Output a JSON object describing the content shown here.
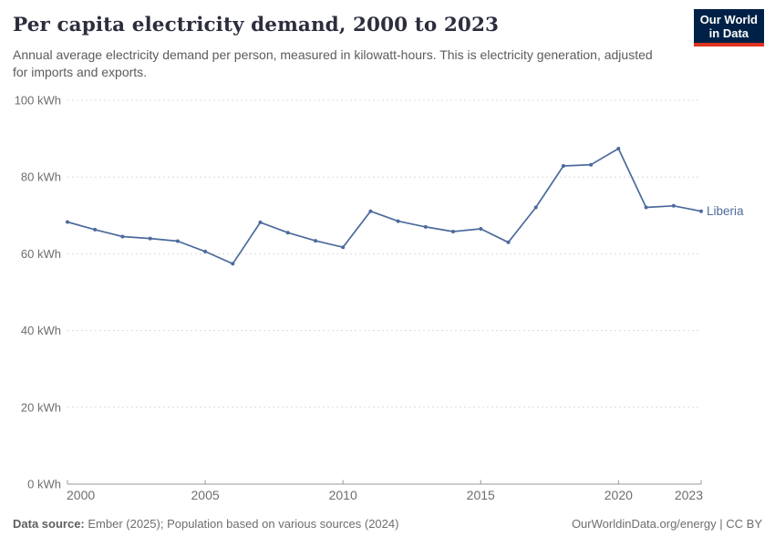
{
  "header": {
    "title": "Per capita electricity demand, 2000 to 2023",
    "subtitle": "Annual average electricity demand per person, measured in kilowatt-hours. This is electricity generation, adjusted for imports and exports."
  },
  "logo": {
    "line1": "Our World",
    "line2": "in Data",
    "bg_color": "#002147",
    "accent_color": "#e0321f"
  },
  "chart_data": {
    "type": "line",
    "title": "Per capita electricity demand, 2000 to 2023",
    "xlabel": "",
    "ylabel": "kWh",
    "unit_suffix": " kWh",
    "x": [
      2000,
      2001,
      2002,
      2003,
      2004,
      2005,
      2006,
      2007,
      2008,
      2009,
      2010,
      2011,
      2012,
      2013,
      2014,
      2015,
      2016,
      2017,
      2018,
      2019,
      2020,
      2021,
      2022,
      2023
    ],
    "series": [
      {
        "name": "Liberia",
        "color": "#4c6a9c",
        "values": [
          68.3,
          66.3,
          64.5,
          64.0,
          63.3,
          60.6,
          57.4,
          68.2,
          65.5,
          63.4,
          61.7,
          71.1,
          68.5,
          67.0,
          65.8,
          66.5,
          63.0,
          72.1,
          82.9,
          83.2,
          87.4,
          72.1,
          72.5,
          71.1
        ]
      }
    ],
    "ylim": [
      0,
      100
    ],
    "yticks": [
      0,
      20,
      40,
      60,
      80,
      100
    ],
    "xticks": [
      2000,
      2005,
      2010,
      2015,
      2020,
      2023
    ],
    "grid": "dashed-horizontal",
    "legend_position": "end-of-line-label",
    "gridline_color": "#dcdcdc",
    "axis_color": "#999999"
  },
  "footer": {
    "source_label": "Data source:",
    "source_text": " Ember (2025); Population based on various sources (2024)",
    "right_text": "OurWorldinData.org/energy | CC BY"
  }
}
